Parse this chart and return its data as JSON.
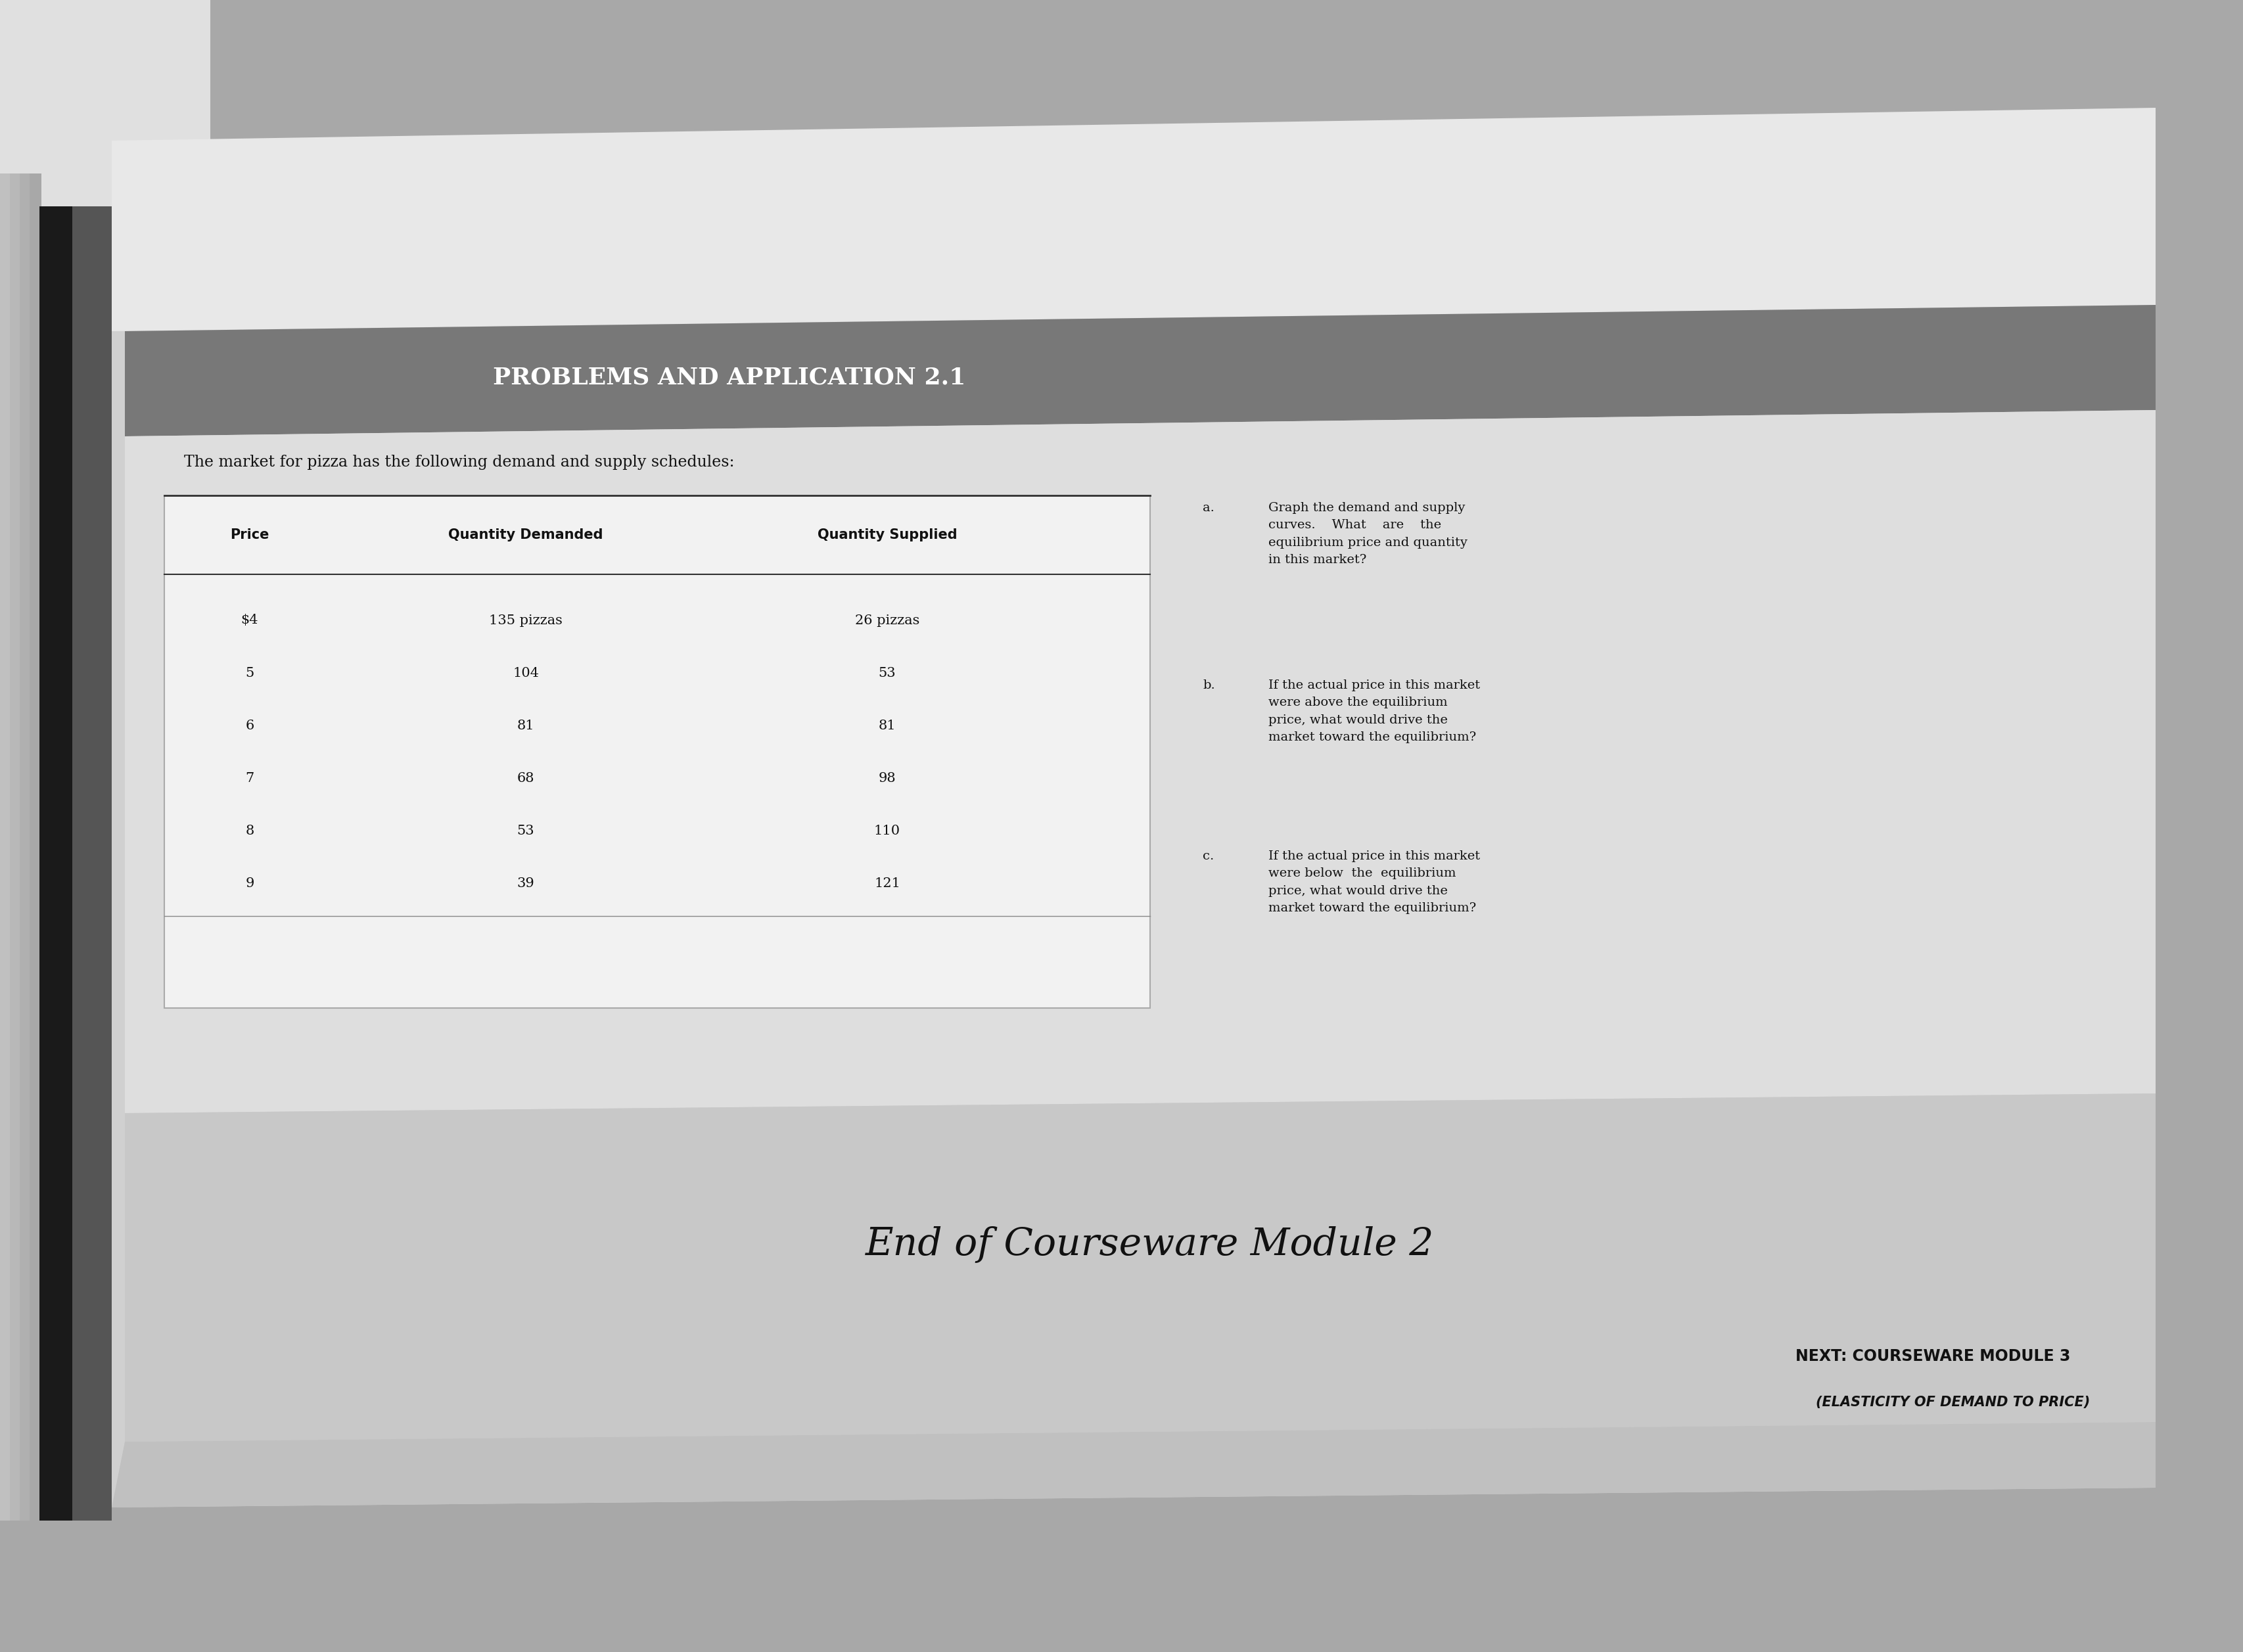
{
  "title": "PROBLEMS AND APPLICATION 2.1",
  "subtitle": "The market for pizza has the following demand and supply schedules:",
  "table_header": [
    "Price",
    "Quantity Demanded",
    "Quantity Supplied"
  ],
  "table_data": [
    [
      "$4",
      "135 pizzas",
      "26 pizzas"
    ],
    [
      "5",
      "104",
      "53"
    ],
    [
      "6",
      "81",
      "81"
    ],
    [
      "7",
      "68",
      "98"
    ],
    [
      "8",
      "53",
      "110"
    ],
    [
      "9",
      "39",
      "121"
    ]
  ],
  "footer_italic": "End of Courseware Module 2",
  "footer_bold1": "NEXT: COURSEWARE MODULE 3",
  "footer_bold2": "(ELASTICITY OF DEMAND TO PRICE)",
  "outer_bg": "#a8a8a8",
  "page_bg": "#d0d0d0",
  "header_bg": "#787878",
  "content_bg": "#dedede",
  "footer_bg": "#c8c8c8",
  "table_bg": "#f2f2f2",
  "spine_dark": "#1a1a1a",
  "spine_mid": "#555555",
  "text_dark": "#111111",
  "text_white": "#ffffff",
  "line_color": "#333333"
}
